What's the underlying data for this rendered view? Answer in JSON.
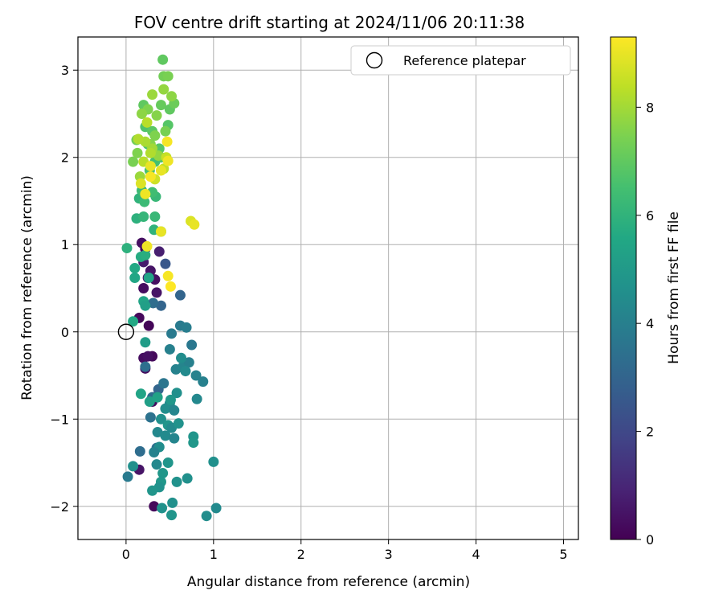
{
  "chart_data": {
    "type": "scatter",
    "title": "FOV centre drift starting at 2024/11/06 20:11:38",
    "xlabel": "Angular distance from reference (arcmin)",
    "ylabel": "Rotation from reference (arcmin)",
    "xlim": [
      -0.55,
      5.17
    ],
    "ylim": [
      -2.38,
      3.38
    ],
    "xticks": [
      0,
      1,
      2,
      3,
      4,
      5
    ],
    "yticks": [
      -2,
      -1,
      0,
      1,
      2,
      3
    ],
    "xtick_labels": [
      "0",
      "1",
      "2",
      "3",
      "4",
      "5"
    ],
    "ytick_labels": [
      "−2",
      "−1",
      "0",
      "1",
      "2",
      "3"
    ],
    "grid": true,
    "legend": {
      "position": "top-right",
      "entries": [
        "Reference platepar"
      ]
    },
    "reference_point": {
      "x": 0,
      "y": 0
    },
    "colorbar": {
      "label": "Hours from first FF file",
      "colormap": "viridis",
      "range": [
        0,
        9.3
      ],
      "ticks": [
        0,
        2,
        4,
        6,
        8
      ],
      "tick_labels": [
        "0",
        "2",
        "4",
        "6",
        "8"
      ]
    },
    "points": [
      {
        "x": 0.3,
        "y": -0.28,
        "c": 0.2
      },
      {
        "x": 0.2,
        "y": -0.3,
        "c": 0.3
      },
      {
        "x": 0.25,
        "y": -0.28,
        "c": 0.4
      },
      {
        "x": 0.22,
        "y": -0.42,
        "c": 0.3
      },
      {
        "x": 0.26,
        "y": 0.07,
        "c": 0.1
      },
      {
        "x": 0.15,
        "y": 0.16,
        "c": 0.2
      },
      {
        "x": 0.2,
        "y": 0.5,
        "c": 0.3
      },
      {
        "x": 0.18,
        "y": 1.02,
        "c": 0.4
      },
      {
        "x": 0.22,
        "y": 0.95,
        "c": 0.2
      },
      {
        "x": 0.28,
        "y": 0.7,
        "c": 0.5
      },
      {
        "x": 0.33,
        "y": 0.6,
        "c": 0.4
      },
      {
        "x": 0.25,
        "y": 0.62,
        "c": 0.6
      },
      {
        "x": 0.35,
        "y": 0.45,
        "c": 0.5
      },
      {
        "x": 0.2,
        "y": 0.8,
        "c": 0.7
      },
      {
        "x": 0.3,
        "y": -0.8,
        "c": 0.3
      },
      {
        "x": 0.32,
        "y": -2.0,
        "c": 0.2
      },
      {
        "x": 0.15,
        "y": -1.58,
        "c": 0.5
      },
      {
        "x": 0.38,
        "y": 0.92,
        "c": 0.8
      },
      {
        "x": 0.45,
        "y": 0.78,
        "c": 2.5
      },
      {
        "x": 0.4,
        "y": 0.3,
        "c": 3.0
      },
      {
        "x": 0.62,
        "y": 0.42,
        "c": 3.0
      },
      {
        "x": 0.31,
        "y": 0.33,
        "c": 3.3
      },
      {
        "x": 0.22,
        "y": -0.4,
        "c": 3.4
      },
      {
        "x": 0.37,
        "y": -0.66,
        "c": 3.0
      },
      {
        "x": 0.43,
        "y": -0.59,
        "c": 3.6
      },
      {
        "x": 0.3,
        "y": -0.75,
        "c": 3.2
      },
      {
        "x": 0.16,
        "y": -1.37,
        "c": 3.3
      },
      {
        "x": 0.28,
        "y": -0.98,
        "c": 3.5
      },
      {
        "x": 0.35,
        "y": -1.33,
        "c": 3.4
      },
      {
        "x": 0.52,
        "y": -0.02,
        "c": 3.8
      },
      {
        "x": 0.62,
        "y": 0.07,
        "c": 3.8
      },
      {
        "x": 0.69,
        "y": 0.05,
        "c": 3.9
      },
      {
        "x": 0.5,
        "y": -0.2,
        "c": 4.0
      },
      {
        "x": 0.57,
        "y": -0.43,
        "c": 4.1
      },
      {
        "x": 0.65,
        "y": -0.4,
        "c": 4.2
      },
      {
        "x": 0.72,
        "y": -0.35,
        "c": 4.0
      },
      {
        "x": 0.75,
        "y": -0.15,
        "c": 3.7
      },
      {
        "x": 0.8,
        "y": -0.5,
        "c": 4.1
      },
      {
        "x": 0.88,
        "y": -0.57,
        "c": 4.0
      },
      {
        "x": 0.81,
        "y": -0.77,
        "c": 4.3
      },
      {
        "x": 0.63,
        "y": -0.3,
        "c": 4.5
      },
      {
        "x": 0.68,
        "y": -0.45,
        "c": 4.4
      },
      {
        "x": 0.5,
        "y": -0.82,
        "c": 4.3
      },
      {
        "x": 0.58,
        "y": -0.7,
        "c": 4.6
      },
      {
        "x": 0.45,
        "y": -0.88,
        "c": 4.5
      },
      {
        "x": 0.55,
        "y": -0.9,
        "c": 4.2
      },
      {
        "x": 0.4,
        "y": -1.0,
        "c": 4.6
      },
      {
        "x": 0.48,
        "y": -1.07,
        "c": 4.8
      },
      {
        "x": 0.52,
        "y": -1.1,
        "c": 4.4
      },
      {
        "x": 0.6,
        "y": -1.05,
        "c": 4.7
      },
      {
        "x": 0.36,
        "y": -1.15,
        "c": 4.3
      },
      {
        "x": 0.45,
        "y": -1.19,
        "c": 4.4
      },
      {
        "x": 0.55,
        "y": -1.22,
        "c": 4.2
      },
      {
        "x": 0.38,
        "y": -1.32,
        "c": 4.5
      },
      {
        "x": 0.32,
        "y": -1.38,
        "c": 4.1
      },
      {
        "x": 0.35,
        "y": -1.52,
        "c": 4.3
      },
      {
        "x": 0.42,
        "y": -1.62,
        "c": 4.9
      },
      {
        "x": 0.48,
        "y": -1.5,
        "c": 4.8
      },
      {
        "x": 0.58,
        "y": -1.72,
        "c": 4.7
      },
      {
        "x": 0.7,
        "y": -1.68,
        "c": 4.6
      },
      {
        "x": 0.4,
        "y": -1.72,
        "c": 4.9
      },
      {
        "x": 0.38,
        "y": -1.78,
        "c": 4.7
      },
      {
        "x": 0.3,
        "y": -1.82,
        "c": 4.8
      },
      {
        "x": 0.53,
        "y": -1.96,
        "c": 4.6
      },
      {
        "x": 0.41,
        "y": -2.02,
        "c": 4.7
      },
      {
        "x": 0.52,
        "y": -2.1,
        "c": 4.8
      },
      {
        "x": 0.92,
        "y": -2.11,
        "c": 4.5
      },
      {
        "x": 1.03,
        "y": -2.02,
        "c": 4.4
      },
      {
        "x": 1.0,
        "y": -1.49,
        "c": 4.6
      },
      {
        "x": 0.77,
        "y": -1.2,
        "c": 4.8
      },
      {
        "x": 0.77,
        "y": -1.27,
        "c": 4.9
      },
      {
        "x": 0.08,
        "y": -1.54,
        "c": 4.6
      },
      {
        "x": 0.02,
        "y": -1.66,
        "c": 3.8
      },
      {
        "x": 0.51,
        "y": -0.78,
        "c": 4.9
      },
      {
        "x": 0.17,
        "y": -0.71,
        "c": 5.4
      },
      {
        "x": 0.27,
        "y": -0.8,
        "c": 5.2
      },
      {
        "x": 0.36,
        "y": -0.75,
        "c": 5.3
      },
      {
        "x": 0.22,
        "y": -0.12,
        "c": 5.1
      },
      {
        "x": 0.08,
        "y": 0.12,
        "c": 5.6
      },
      {
        "x": 0.2,
        "y": 0.35,
        "c": 5.4
      },
      {
        "x": 0.22,
        "y": 0.3,
        "c": 5.2
      },
      {
        "x": 0.1,
        "y": 0.62,
        "c": 5.5
      },
      {
        "x": 0.26,
        "y": 0.62,
        "c": 5.4
      },
      {
        "x": 0.1,
        "y": 0.73,
        "c": 5.6
      },
      {
        "x": 0.17,
        "y": 0.86,
        "c": 5.7
      },
      {
        "x": 0.22,
        "y": 0.88,
        "c": 5.8
      },
      {
        "x": 0.01,
        "y": 0.96,
        "c": 5.9
      },
      {
        "x": 0.32,
        "y": 1.17,
        "c": 6.0
      },
      {
        "x": 0.12,
        "y": 1.3,
        "c": 5.9
      },
      {
        "x": 0.2,
        "y": 1.32,
        "c": 6.1
      },
      {
        "x": 0.33,
        "y": 1.32,
        "c": 6.2
      },
      {
        "x": 0.15,
        "y": 1.53,
        "c": 6.0
      },
      {
        "x": 0.34,
        "y": 1.55,
        "c": 6.2
      },
      {
        "x": 0.21,
        "y": 1.49,
        "c": 6.3
      },
      {
        "x": 0.3,
        "y": 1.6,
        "c": 6.4
      },
      {
        "x": 0.18,
        "y": 1.62,
        "c": 6.3
      },
      {
        "x": 0.4,
        "y": 1.15,
        "c": 6.5
      },
      {
        "x": 0.27,
        "y": 1.85,
        "c": 6.6
      },
      {
        "x": 0.33,
        "y": 1.95,
        "c": 6.5
      },
      {
        "x": 0.4,
        "y": 2.0,
        "c": 6.7
      },
      {
        "x": 0.25,
        "y": 2.15,
        "c": 6.6
      },
      {
        "x": 0.38,
        "y": 2.1,
        "c": 6.8
      },
      {
        "x": 0.22,
        "y": 2.35,
        "c": 6.7
      },
      {
        "x": 0.3,
        "y": 2.3,
        "c": 6.9
      },
      {
        "x": 0.48,
        "y": 2.37,
        "c": 6.8
      },
      {
        "x": 0.2,
        "y": 2.6,
        "c": 7.0
      },
      {
        "x": 0.4,
        "y": 2.6,
        "c": 7.1
      },
      {
        "x": 0.5,
        "y": 2.55,
        "c": 7.0
      },
      {
        "x": 0.55,
        "y": 2.62,
        "c": 7.2
      },
      {
        "x": 0.42,
        "y": 3.12,
        "c": 7.0
      },
      {
        "x": 0.43,
        "y": 2.93,
        "c": 7.3
      },
      {
        "x": 0.48,
        "y": 2.93,
        "c": 7.4
      },
      {
        "x": 0.12,
        "y": 2.2,
        "c": 7.3
      },
      {
        "x": 0.08,
        "y": 1.95,
        "c": 7.4
      },
      {
        "x": 0.13,
        "y": 2.05,
        "c": 7.5
      },
      {
        "x": 0.28,
        "y": 2.15,
        "c": 7.6
      },
      {
        "x": 0.33,
        "y": 2.25,
        "c": 7.5
      },
      {
        "x": 0.45,
        "y": 2.3,
        "c": 7.4
      },
      {
        "x": 0.35,
        "y": 2.48,
        "c": 7.6
      },
      {
        "x": 0.25,
        "y": 2.55,
        "c": 7.5
      },
      {
        "x": 0.18,
        "y": 2.5,
        "c": 7.7
      },
      {
        "x": 0.43,
        "y": 2.78,
        "c": 7.8
      },
      {
        "x": 0.3,
        "y": 2.72,
        "c": 7.9
      },
      {
        "x": 0.52,
        "y": 2.7,
        "c": 7.7
      },
      {
        "x": 0.37,
        "y": 2.02,
        "c": 7.8
      },
      {
        "x": 0.16,
        "y": 1.78,
        "c": 7.9
      },
      {
        "x": 0.3,
        "y": 2.1,
        "c": 8.0
      },
      {
        "x": 0.22,
        "y": 2.18,
        "c": 8.1
      },
      {
        "x": 0.14,
        "y": 2.21,
        "c": 8.2
      },
      {
        "x": 0.2,
        "y": 1.95,
        "c": 8.3
      },
      {
        "x": 0.43,
        "y": 1.87,
        "c": 8.4
      },
      {
        "x": 0.28,
        "y": 2.05,
        "c": 8.2
      },
      {
        "x": 0.24,
        "y": 2.4,
        "c": 8.3
      },
      {
        "x": 0.46,
        "y": 2.0,
        "c": 8.5
      },
      {
        "x": 0.33,
        "y": 1.75,
        "c": 8.6
      },
      {
        "x": 0.17,
        "y": 1.7,
        "c": 8.8
      },
      {
        "x": 0.28,
        "y": 1.9,
        "c": 9.0
      },
      {
        "x": 0.4,
        "y": 1.85,
        "c": 9.0
      },
      {
        "x": 0.22,
        "y": 1.58,
        "c": 9.1
      },
      {
        "x": 0.48,
        "y": 1.96,
        "c": 9.1
      },
      {
        "x": 0.47,
        "y": 2.18,
        "c": 9.2
      },
      {
        "x": 0.28,
        "y": 1.78,
        "c": 9.2
      },
      {
        "x": 0.4,
        "y": 1.15,
        "c": 9.0
      },
      {
        "x": 0.74,
        "y": 1.27,
        "c": 8.8
      },
      {
        "x": 0.78,
        "y": 1.23,
        "c": 9.0
      },
      {
        "x": 0.24,
        "y": 0.98,
        "c": 9.1
      },
      {
        "x": 0.48,
        "y": 0.64,
        "c": 9.2
      },
      {
        "x": 0.51,
        "y": 0.52,
        "c": 9.3
      }
    ]
  }
}
